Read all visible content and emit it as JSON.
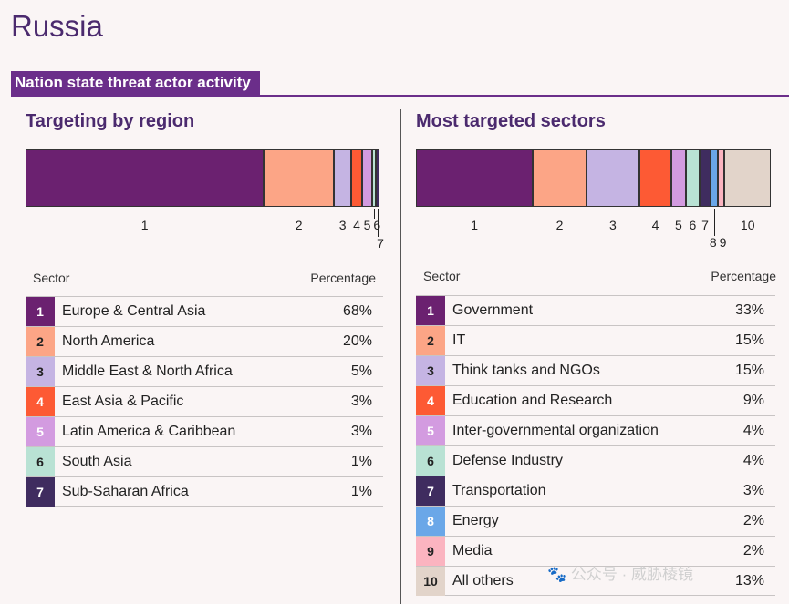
{
  "page": {
    "title": "Russia",
    "banner": "Nation state threat actor activity",
    "watermark": "🐾 公众号 · 威胁棱镜"
  },
  "chart_data": [
    {
      "type": "bar",
      "stacked": true,
      "title": "Targeting by region",
      "col_headers": [
        "Sector",
        "Percentage"
      ],
      "categories": [
        "1",
        "2",
        "3",
        "4",
        "5",
        "6",
        "7"
      ],
      "names": [
        "Europe & Central Asia",
        "North America",
        "Middle East & North Africa",
        "East Asia & Pacific",
        "Latin America & Caribbean",
        "South Asia",
        "Sub-Saharan Africa"
      ],
      "values": [
        68,
        20,
        5,
        3,
        3,
        1,
        1
      ],
      "labels": [
        "68%",
        "20%",
        "5%",
        "3%",
        "3%",
        "1%",
        "1%"
      ],
      "colors": [
        "#6b2170",
        "#fca586",
        "#c5b4e3",
        "#fd5a34",
        "#d39be0",
        "#b9e2d4",
        "#3f2c5f"
      ]
    },
    {
      "type": "bar",
      "stacked": true,
      "title": "Most targeted sectors",
      "col_headers": [
        "Sector",
        "Percentage"
      ],
      "categories": [
        "1",
        "2",
        "3",
        "4",
        "5",
        "6",
        "7",
        "8",
        "9",
        "10"
      ],
      "names": [
        "Government",
        "IT",
        "Think tanks and NGOs",
        "Education and Research",
        "Inter-governmental organization",
        "Defense Industry",
        "Transportation",
        "Energy",
        "Media",
        "All others"
      ],
      "values": [
        33,
        15,
        15,
        9,
        4,
        4,
        3,
        2,
        2,
        13
      ],
      "labels": [
        "33%",
        "15%",
        "15%",
        "9%",
        "4%",
        "4%",
        "3%",
        "2%",
        "2%",
        "13%"
      ],
      "colors": [
        "#6b2170",
        "#fca586",
        "#c5b4e3",
        "#fd5a34",
        "#d39be0",
        "#b9e2d4",
        "#3f2c5f",
        "#6aa7e8",
        "#fbb4c0",
        "#e2d4ca"
      ]
    }
  ]
}
